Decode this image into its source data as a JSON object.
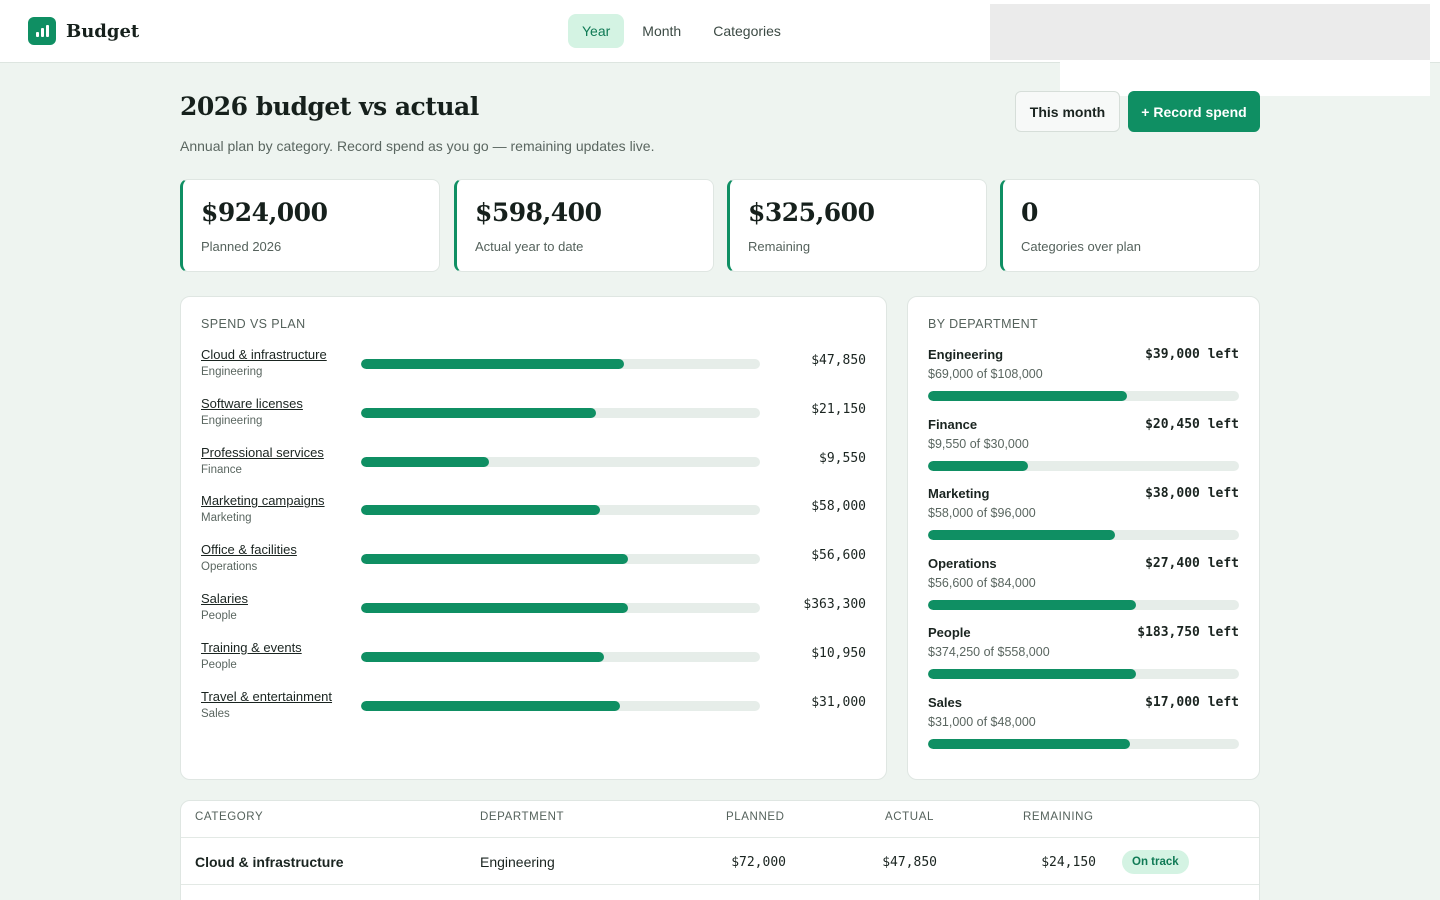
{
  "app": {
    "name": "Budget",
    "accent": "#0f8f63",
    "logo_icon": "bar-chart-icon"
  },
  "nav": {
    "tabs": [
      {
        "label": "Year",
        "active": true
      },
      {
        "label": "Month",
        "active": false
      },
      {
        "label": "Categories",
        "active": false
      }
    ]
  },
  "header": {
    "title": "2026 budget vs actual",
    "subtitle": "Annual plan by category. Record spend as you go — remaining updates live.",
    "this_month_label": "This month",
    "record_spend_label": "+ Record spend"
  },
  "kpis": [
    {
      "value": "$924,000",
      "label": "Planned 2026"
    },
    {
      "value": "$598,400",
      "label": "Actual year to date"
    },
    {
      "value": "$325,600",
      "label": "Remaining"
    },
    {
      "value": "0",
      "label": "Categories over plan"
    }
  ],
  "spend_vs_plan": {
    "title": "SPEND VS PLAN",
    "rows": [
      {
        "name": "Cloud & infrastructure",
        "dept": "Engineering",
        "amount": "$47,850",
        "fraction": 0.66
      },
      {
        "name": "Software licenses",
        "dept": "Engineering",
        "amount": "$21,150",
        "fraction": 0.59
      },
      {
        "name": "Professional services",
        "dept": "Finance",
        "amount": "$9,550",
        "fraction": 0.32
      },
      {
        "name": "Marketing campaigns",
        "dept": "Marketing",
        "amount": "$58,000",
        "fraction": 0.6
      },
      {
        "name": "Office & facilities",
        "dept": "Operations",
        "amount": "$56,600",
        "fraction": 0.67
      },
      {
        "name": "Salaries",
        "dept": "People",
        "amount": "$363,300",
        "fraction": 0.67
      },
      {
        "name": "Training & events",
        "dept": "People",
        "amount": "$10,950",
        "fraction": 0.61
      },
      {
        "name": "Travel & entertainment",
        "dept": "Sales",
        "amount": "$31,000",
        "fraction": 0.65
      }
    ]
  },
  "by_department": {
    "title": "BY DEPARTMENT",
    "rows": [
      {
        "name": "Engineering",
        "left": "$39,000 left",
        "sub": "$69,000 of $108,000",
        "fraction": 0.64
      },
      {
        "name": "Finance",
        "left": "$20,450 left",
        "sub": "$9,550 of $30,000",
        "fraction": 0.32
      },
      {
        "name": "Marketing",
        "left": "$38,000 left",
        "sub": "$58,000 of $96,000",
        "fraction": 0.6
      },
      {
        "name": "Operations",
        "left": "$27,400 left",
        "sub": "$56,600 of $84,000",
        "fraction": 0.67
      },
      {
        "name": "People",
        "left": "$183,750 left",
        "sub": "$374,250 of $558,000",
        "fraction": 0.67
      },
      {
        "name": "Sales",
        "left": "$17,000 left",
        "sub": "$31,000 of $48,000",
        "fraction": 0.65
      }
    ]
  },
  "table": {
    "headers": {
      "category": "CATEGORY",
      "department": "DEPARTMENT",
      "planned": "PLANNED",
      "actual": "ACTUAL",
      "remaining": "REMAINING"
    },
    "rows": [
      {
        "category": "Cloud & infrastructure",
        "department": "Engineering",
        "planned": "$72,000",
        "actual": "$47,850",
        "remaining": "$24,150",
        "status": "On track"
      }
    ]
  }
}
